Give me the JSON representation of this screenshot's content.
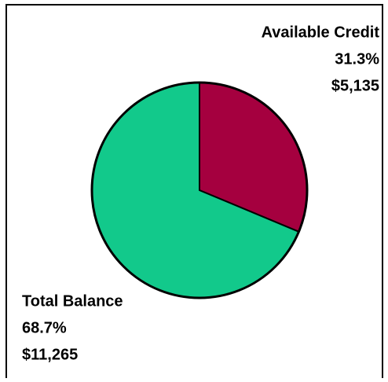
{
  "chart_data": {
    "type": "pie",
    "categories": [
      "Available Credit",
      "Total Balance"
    ],
    "values": [
      31.3,
      68.7
    ],
    "value_labels": [
      "31.3%",
      "68.7%"
    ],
    "amounts": [
      "$5,135",
      "$11,265"
    ],
    "colors": [
      "#a5003f",
      "#12c98b"
    ]
  }
}
